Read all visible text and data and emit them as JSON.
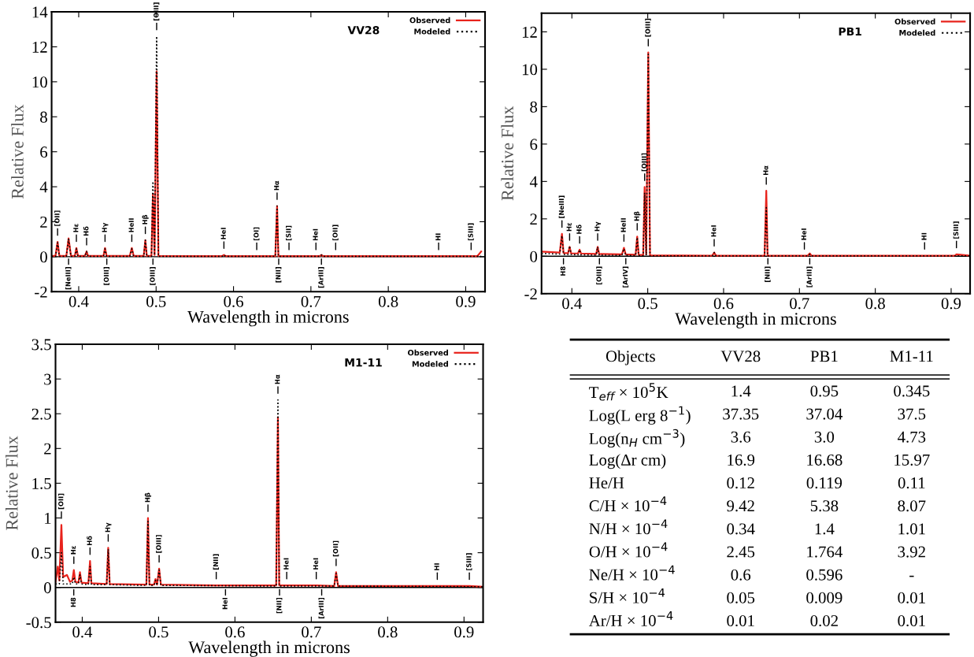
{
  "chart_data": [
    {
      "type": "line",
      "title": "VV28",
      "xlabel": "Wavelength in microns",
      "ylabel": "Relative Flux",
      "xlim": [
        0.365,
        0.925
      ],
      "xticks": [
        0.4,
        0.5,
        0.6,
        0.7,
        0.8,
        0.9
      ],
      "ylim": [
        -2,
        14
      ],
      "yticks": [
        -2,
        0,
        2,
        4,
        6,
        8,
        10,
        12,
        14
      ],
      "legend": "top right",
      "ref_lines": [
        {
          "axis": "y",
          "value": 0,
          "color": "#000000"
        }
      ],
      "series": [
        {
          "name": "Observed",
          "color": "#e8231c",
          "line_style": "solid",
          "x": [
            0.365,
            0.37,
            0.3727,
            0.375,
            0.384,
            0.3869,
            0.39,
            0.395,
            0.397,
            0.399,
            0.408,
            0.4102,
            0.412,
            0.432,
            0.434,
            0.436,
            0.466,
            0.4686,
            0.471,
            0.484,
            0.4861,
            0.488,
            0.494,
            0.4959,
            0.498,
            0.5007,
            0.503,
            0.585,
            0.5876,
            0.59,
            0.63,
            0.654,
            0.6563,
            0.658,
            0.6717,
            0.7065,
            0.711,
            0.7136,
            0.716,
            0.732,
            0.865,
            0.907,
            0.915,
            0.92
          ],
          "values": [
            0.05,
            0.05,
            0.85,
            0.05,
            0.05,
            1.05,
            0.05,
            0.05,
            0.5,
            0.05,
            0.05,
            0.3,
            0.05,
            0.05,
            0.5,
            0.05,
            0.05,
            0.5,
            0.05,
            0.05,
            0.95,
            0.05,
            0.05,
            3.6,
            0.1,
            10.6,
            0.05,
            0.03,
            0.1,
            0.03,
            0.03,
            0.03,
            2.9,
            0.03,
            0.03,
            0.03,
            0.03,
            0.1,
            0.03,
            0.03,
            0.03,
            0.03,
            0.03,
            0.3
          ]
        },
        {
          "name": "Modeled",
          "color": "#000000",
          "line_style": "dotted",
          "x": [
            0.365,
            0.37,
            0.3727,
            0.375,
            0.384,
            0.3869,
            0.39,
            0.395,
            0.397,
            0.399,
            0.408,
            0.4102,
            0.412,
            0.432,
            0.434,
            0.436,
            0.466,
            0.4686,
            0.471,
            0.484,
            0.4861,
            0.488,
            0.494,
            0.4959,
            0.498,
            0.5007,
            0.503,
            0.585,
            0.5876,
            0.59,
            0.654,
            0.6563,
            0.658,
            0.711,
            0.7136,
            0.716,
            0.92
          ],
          "values": [
            0.02,
            0.02,
            0.8,
            0.02,
            0.02,
            1.0,
            0.02,
            0.02,
            0.45,
            0.02,
            0.02,
            0.3,
            0.02,
            0.02,
            0.45,
            0.02,
            0.02,
            0.45,
            0.02,
            0.02,
            0.95,
            0.02,
            0.02,
            4.3,
            0.1,
            12.6,
            0.02,
            0.02,
            0.1,
            0.02,
            0.02,
            2.9,
            0.02,
            0.02,
            0.1,
            0.02,
            0.02
          ]
        }
      ],
      "annotations": [
        {
          "text": "[OII]",
          "x": 0.3727,
          "y": 0.85
        },
        {
          "text": "Hε",
          "x": 0.397,
          "y": 0.5
        },
        {
          "text": "Hδ",
          "x": 0.4102,
          "y": 0.3
        },
        {
          "text": "Hγ",
          "x": 0.434,
          "y": 0.5
        },
        {
          "text": "HeII",
          "x": 0.4686,
          "y": 0.5
        },
        {
          "text": "Hβ",
          "x": 0.4861,
          "y": 0.95
        },
        {
          "text": "[OIII]",
          "x": 0.5007,
          "y": 12.6
        },
        {
          "text": "HeI",
          "x": 0.5876,
          "y": 0.1
        },
        {
          "text": "[OI]",
          "x": 0.63,
          "y": 0.03
        },
        {
          "text": "Hα",
          "x": 0.6563,
          "y": 2.9
        },
        {
          "text": "[SII]",
          "x": 0.6717,
          "y": 0.03
        },
        {
          "text": "HeI",
          "x": 0.7065,
          "y": 0.03
        },
        {
          "text": "[OII]",
          "x": 0.732,
          "y": 0.03
        },
        {
          "text": "HI",
          "x": 0.865,
          "y": 0.03
        },
        {
          "text": "[SIII]",
          "x": 0.907,
          "y": 0.03
        },
        {
          "text": "[NeIII]",
          "x": 0.3869,
          "y": 0
        },
        {
          "text": "[OIII]",
          "x": 0.4363,
          "y": 0
        },
        {
          "text": "[OIII]",
          "x": 0.4959,
          "y": 0
        },
        {
          "text": "[NII]",
          "x": 0.6584,
          "y": 0
        },
        {
          "text": "[ArIII]",
          "x": 0.7136,
          "y": 0
        }
      ]
    },
    {
      "type": "line",
      "title": "PB1",
      "xlabel": "Wavelength in microns",
      "ylabel": "Relative Flux",
      "xlim": [
        0.36,
        0.925
      ],
      "xticks": [
        0.4,
        0.5,
        0.6,
        0.7,
        0.8,
        0.9
      ],
      "ylim": [
        -2,
        13
      ],
      "yticks": [
        -2,
        0,
        2,
        4,
        6,
        8,
        10,
        12
      ],
      "legend": "top right",
      "ref_lines": [
        {
          "axis": "y",
          "value": 0,
          "color": "#000000"
        }
      ],
      "series": [
        {
          "name": "Observed",
          "color": "#e8231c",
          "line_style": "solid",
          "x": [
            0.36,
            0.384,
            0.3869,
            0.389,
            0.395,
            0.397,
            0.399,
            0.408,
            0.4102,
            0.412,
            0.432,
            0.434,
            0.436,
            0.466,
            0.4686,
            0.471,
            0.484,
            0.4861,
            0.488,
            0.494,
            0.4959,
            0.498,
            0.5007,
            0.503,
            0.585,
            0.5876,
            0.59,
            0.654,
            0.6563,
            0.658,
            0.7065,
            0.711,
            0.7136,
            0.716,
            0.865,
            0.905,
            0.907,
            0.925
          ],
          "values": [
            0.25,
            0.2,
            1.2,
            0.18,
            0.17,
            0.5,
            0.16,
            0.15,
            0.35,
            0.15,
            0.12,
            0.5,
            0.12,
            0.1,
            0.45,
            0.1,
            0.08,
            1.05,
            0.08,
            0.06,
            3.7,
            0.1,
            10.9,
            0.05,
            0.03,
            0.2,
            0.03,
            0.03,
            3.5,
            0.03,
            0.03,
            0.03,
            0.15,
            0.03,
            0.03,
            0.03,
            0.1,
            0.03
          ]
        },
        {
          "name": "Modeled",
          "color": "#000000",
          "line_style": "dotted",
          "x": [
            0.36,
            0.384,
            0.3869,
            0.389,
            0.395,
            0.397,
            0.399,
            0.408,
            0.4102,
            0.412,
            0.432,
            0.434,
            0.436,
            0.466,
            0.4686,
            0.471,
            0.484,
            0.4861,
            0.488,
            0.494,
            0.4959,
            0.498,
            0.5007,
            0.503,
            0.585,
            0.5876,
            0.59,
            0.654,
            0.6563,
            0.658,
            0.711,
            0.7136,
            0.716,
            0.925
          ],
          "values": [
            0.15,
            0.12,
            1.1,
            0.1,
            0.1,
            0.55,
            0.1,
            0.08,
            0.35,
            0.08,
            0.06,
            0.5,
            0.06,
            0.05,
            0.4,
            0.05,
            0.04,
            1.0,
            0.04,
            0.03,
            3.4,
            0.05,
            10.8,
            0.02,
            0.02,
            0.2,
            0.02,
            0.02,
            2.6,
            0.02,
            0.02,
            0.1,
            0.02,
            0.02
          ]
        }
      ],
      "annotations": [
        {
          "text": "[NeIII]",
          "x": 0.3869,
          "y": 1.2
        },
        {
          "text": "Hε",
          "x": 0.397,
          "y": 0.5
        },
        {
          "text": "Hδ",
          "x": 0.4102,
          "y": 0.35
        },
        {
          "text": "Hγ",
          "x": 0.434,
          "y": 0.5
        },
        {
          "text": "HeII",
          "x": 0.4686,
          "y": 0.45
        },
        {
          "text": "Hβ",
          "x": 0.4861,
          "y": 1.05
        },
        {
          "text": "[OIII]",
          "x": 0.4959,
          "y": 3.7
        },
        {
          "text": "[OIII]",
          "x": 0.5007,
          "y": 10.9
        },
        {
          "text": "HeI",
          "x": 0.5876,
          "y": 0.2
        },
        {
          "text": "Hα",
          "x": 0.6563,
          "y": 3.5
        },
        {
          "text": "HeI",
          "x": 0.7065,
          "y": 0.03
        },
        {
          "text": "HI",
          "x": 0.865,
          "y": 0.03
        },
        {
          "text": "[SIII]",
          "x": 0.907,
          "y": 0.1
        },
        {
          "text": "H8",
          "x": 0.3889,
          "y": 0
        },
        {
          "text": "[OIII]",
          "x": 0.4363,
          "y": 0
        },
        {
          "text": "[ArIV]",
          "x": 0.4711,
          "y": 0
        },
        {
          "text": "[NII]",
          "x": 0.6584,
          "y": 0
        },
        {
          "text": "[ArIII]",
          "x": 0.7136,
          "y": 0
        }
      ]
    },
    {
      "type": "line",
      "title": "M1-11",
      "xlabel": "Wavelength in microns",
      "ylabel": "Relative Flux",
      "xlim": [
        0.365,
        0.925
      ],
      "xticks": [
        0.4,
        0.5,
        0.6,
        0.7,
        0.8,
        0.9
      ],
      "ylim": [
        -0.5,
        3.5
      ],
      "yticks": [
        -0.5,
        0,
        0.5,
        1,
        1.5,
        2,
        2.5,
        3,
        3.5
      ],
      "legend": "top right",
      "ref_lines": [
        {
          "axis": "y",
          "value": 0,
          "color": "#000000"
        }
      ],
      "series": [
        {
          "name": "Observed",
          "color": "#e8231c",
          "line_style": "solid",
          "x": [
            0.365,
            0.368,
            0.37,
            0.3727,
            0.375,
            0.38,
            0.384,
            0.387,
            0.389,
            0.391,
            0.395,
            0.397,
            0.399,
            0.408,
            0.4102,
            0.412,
            0.432,
            0.434,
            0.436,
            0.484,
            0.4861,
            0.488,
            0.494,
            0.4959,
            0.498,
            0.5007,
            0.503,
            0.5755,
            0.654,
            0.6563,
            0.658,
            0.6678,
            0.7065,
            0.73,
            0.7325,
            0.735,
            0.865,
            0.907,
            0.925
          ],
          "values": [
            0.08,
            0.3,
            0.1,
            0.9,
            0.15,
            0.18,
            0.08,
            0.1,
            0.25,
            0.08,
            0.07,
            0.22,
            0.07,
            0.06,
            0.38,
            0.06,
            0.05,
            0.57,
            0.05,
            0.04,
            1.0,
            0.04,
            0.04,
            0.12,
            0.04,
            0.27,
            0.04,
            0.03,
            0.03,
            2.45,
            0.03,
            0.03,
            0.03,
            0.02,
            0.22,
            0.02,
            0.02,
            0.02,
            0.01
          ]
        },
        {
          "name": "Modeled",
          "color": "#000000",
          "line_style": "dotted",
          "x": [
            0.365,
            0.37,
            0.3727,
            0.375,
            0.387,
            0.389,
            0.391,
            0.395,
            0.397,
            0.399,
            0.408,
            0.4102,
            0.412,
            0.432,
            0.434,
            0.436,
            0.484,
            0.4861,
            0.488,
            0.494,
            0.4959,
            0.498,
            0.5007,
            0.503,
            0.654,
            0.6563,
            0.658,
            0.73,
            0.7325,
            0.735,
            0.925
          ],
          "values": [
            0.05,
            0.05,
            0.5,
            0.05,
            0.05,
            0.15,
            0.05,
            0.05,
            0.18,
            0.05,
            0.04,
            0.3,
            0.04,
            0.04,
            0.55,
            0.04,
            0.03,
            0.95,
            0.03,
            0.03,
            0.1,
            0.03,
            0.25,
            0.03,
            0.02,
            2.7,
            0.02,
            0.02,
            0.2,
            0.02,
            0.01
          ]
        }
      ],
      "annotations": [
        {
          "text": "[OII]",
          "x": 0.3727,
          "y": 0.9
        },
        {
          "text": "Hε",
          "x": 0.389,
          "y": 0.25
        },
        {
          "text": "Hδ",
          "x": 0.4102,
          "y": 0.38
        },
        {
          "text": "Hγ",
          "x": 0.434,
          "y": 0.57
        },
        {
          "text": "Hβ",
          "x": 0.4861,
          "y": 1.0
        },
        {
          "text": "[OIII]",
          "x": 0.5007,
          "y": 0.27
        },
        {
          "text": "[NII]",
          "x": 0.5755,
          "y": 0.03
        },
        {
          "text": "Hα",
          "x": 0.6563,
          "y": 2.7
        },
        {
          "text": "HeI",
          "x": 0.6678,
          "y": 0.03
        },
        {
          "text": "HeI",
          "x": 0.7065,
          "y": 0.03
        },
        {
          "text": "[OII]",
          "x": 0.7325,
          "y": 0.22
        },
        {
          "text": "HI",
          "x": 0.865,
          "y": 0.02
        },
        {
          "text": "[SIII]",
          "x": 0.907,
          "y": 0.02
        },
        {
          "text": "H8",
          "x": 0.3889,
          "y": 0
        },
        {
          "text": "HeI",
          "x": 0.5876,
          "y": 0
        },
        {
          "text": "[NII]",
          "x": 0.6584,
          "y": 0
        },
        {
          "text": "[ArIII]",
          "x": 0.7136,
          "y": 0
        }
      ]
    },
    {
      "type": "other",
      "ylabel": "Objects",
      "categories": [
        "VV28",
        "PB1",
        "M1-11"
      ],
      "y_categories": [
        "T$_{eff}$ × 10$^{5}$K",
        "Log(L erg 8$^{−1}$)",
        "Log(n$_{H}$ cm$^{−3}$)",
        "Log(Δr cm)",
        "He/H",
        "C/H × 10$^{−4}$",
        "N/H × 10$^{−4}$",
        "O/H × 10$^{−4}$",
        "Ne/H × 10$^{−4}$",
        "S/H × 10$^{−4}$",
        "Ar/H × 10$^{−4}$"
      ],
      "cell_labels": [
        [
          "1.4",
          "0.95",
          "0.345"
        ],
        [
          "37.35",
          "37.04",
          "37.5"
        ],
        [
          "3.6",
          "3.0",
          "4.73"
        ],
        [
          "16.9",
          "16.68",
          "15.97"
        ],
        [
          "0.12",
          "0.119",
          "0.11"
        ],
        [
          "9.42",
          "5.38",
          "8.07"
        ],
        [
          "0.34",
          "1.4",
          "1.01"
        ],
        [
          "2.45",
          "1.764",
          "3.92"
        ],
        [
          "0.6",
          "0.596",
          "-"
        ],
        [
          "0.05",
          "0.009",
          "0.01"
        ],
        [
          "0.01",
          "0.02",
          "0.01"
        ]
      ]
    }
  ]
}
